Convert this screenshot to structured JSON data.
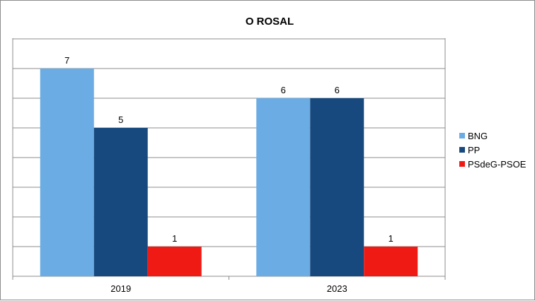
{
  "chart_data": {
    "type": "bar",
    "title": "O ROSAL",
    "categories": [
      "2019",
      "2023"
    ],
    "series": [
      {
        "name": "BNG",
        "color": "#6aace3",
        "values": [
          7,
          6
        ]
      },
      {
        "name": "PP",
        "color": "#17497e",
        "values": [
          5,
          6
        ]
      },
      {
        "name": "PSdeG-PSOE",
        "color": "#f01a14",
        "values": [
          1,
          1
        ]
      }
    ],
    "ylim": [
      0,
      7
    ],
    "grid": true,
    "legend": "right",
    "xlabel": "",
    "ylabel": ""
  }
}
